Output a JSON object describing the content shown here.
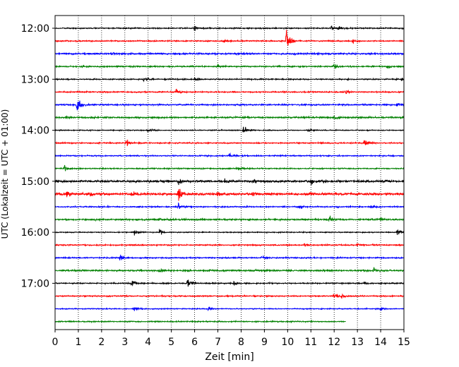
{
  "chart_data": {
    "type": "line",
    "xlabel": "Zeit  [min]",
    "ylabel": "UTC (Lokalzeit = UTC + 01:00)",
    "xlim": [
      0,
      15
    ],
    "x_ticks": [
      0,
      1,
      2,
      3,
      4,
      5,
      6,
      7,
      8,
      9,
      10,
      11,
      12,
      13,
      14,
      15
    ],
    "x_tick_labels": [
      "0",
      "1",
      "2",
      "3",
      "4",
      "5",
      "6",
      "7",
      "8",
      "9",
      "10",
      "11",
      "12",
      "13",
      "14",
      "15"
    ],
    "y_tick_labels": [
      "12:00",
      "13:00",
      "14:00",
      "15:00",
      "16:00",
      "17:00"
    ],
    "grid": "vertical dotted",
    "colors": [
      "#000000",
      "#ff0000",
      "#0000ff",
      "#008000"
    ],
    "start_time": "12:00",
    "trace_interval_min": 15,
    "traces": [
      {
        "start": "12:00",
        "color_index": 0,
        "x_end": 15,
        "noise": 0.5,
        "events": [
          {
            "x": 6.0,
            "amp": 2.2
          },
          {
            "x": 11.9,
            "amp": 2.0
          },
          {
            "x": 12.2,
            "amp": 1.6
          }
        ]
      },
      {
        "start": "12:15",
        "color_index": 1,
        "x_end": 15,
        "noise": 0.5,
        "events": [
          {
            "x": 7.2,
            "amp": 2.0
          },
          {
            "x": 9.95,
            "amp": 12.0
          },
          {
            "x": 12.8,
            "amp": 1.5
          }
        ]
      },
      {
        "start": "12:30",
        "color_index": 2,
        "x_end": 15,
        "noise": 0.7,
        "events": [
          {
            "x": 2.5,
            "amp": 1.4
          }
        ]
      },
      {
        "start": "12:45",
        "color_index": 3,
        "x_end": 15,
        "noise": 0.6,
        "events": [
          {
            "x": 7.0,
            "amp": 1.8
          },
          {
            "x": 12.0,
            "amp": 2.4
          },
          {
            "x": 14.3,
            "amp": 2.0
          }
        ]
      },
      {
        "start": "13:00",
        "color_index": 0,
        "x_end": 15,
        "noise": 0.5,
        "events": [
          {
            "x": 3.8,
            "amp": 2.0
          },
          {
            "x": 6.0,
            "amp": 2.2
          },
          {
            "x": 14.9,
            "amp": 1.8
          }
        ]
      },
      {
        "start": "13:15",
        "color_index": 1,
        "x_end": 15,
        "noise": 0.5,
        "events": [
          {
            "x": 5.2,
            "amp": 2.6
          },
          {
            "x": 12.5,
            "amp": 1.8
          }
        ]
      },
      {
        "start": "13:30",
        "color_index": 2,
        "x_end": 15,
        "noise": 0.6,
        "events": [
          {
            "x": 0.95,
            "amp": 9.0
          },
          {
            "x": 14.7,
            "amp": 2.4
          }
        ]
      },
      {
        "start": "13:45",
        "color_index": 3,
        "x_end": 15,
        "noise": 0.7,
        "events": [
          {
            "x": 0.5,
            "amp": 1.6
          },
          {
            "x": 12.0,
            "amp": 2.0
          }
        ]
      },
      {
        "start": "14:00",
        "color_index": 0,
        "x_end": 15,
        "noise": 0.4,
        "events": [
          {
            "x": 4.0,
            "amp": 1.6
          },
          {
            "x": 8.1,
            "amp": 4.5
          },
          {
            "x": 10.9,
            "amp": 1.6
          }
        ]
      },
      {
        "start": "14:15",
        "color_index": 1,
        "x_end": 15,
        "noise": 0.5,
        "events": [
          {
            "x": 3.05,
            "amp": 3.0
          },
          {
            "x": 13.3,
            "amp": 3.0
          }
        ]
      },
      {
        "start": "14:30",
        "color_index": 2,
        "x_end": 15,
        "noise": 0.5,
        "events": [
          {
            "x": 7.5,
            "amp": 2.5
          }
        ]
      },
      {
        "start": "14:45",
        "color_index": 3,
        "x_end": 15,
        "noise": 0.5,
        "events": [
          {
            "x": 0.4,
            "amp": 3.0
          },
          {
            "x": 7.9,
            "amp": 1.8
          }
        ]
      },
      {
        "start": "15:00",
        "color_index": 0,
        "x_end": 15,
        "noise": 0.9,
        "events": [
          {
            "x": 5.3,
            "amp": 3.2
          },
          {
            "x": 7.3,
            "amp": 2.6
          },
          {
            "x": 8.5,
            "amp": 2.8
          },
          {
            "x": 11.0,
            "amp": 4.2
          },
          {
            "x": 11.5,
            "amp": 2.6
          }
        ]
      },
      {
        "start": "15:15",
        "color_index": 1,
        "x_end": 15,
        "noise": 1.0,
        "events": [
          {
            "x": 0.5,
            "amp": 2.6
          },
          {
            "x": 1.5,
            "amp": 2.4
          },
          {
            "x": 3.3,
            "amp": 3.0
          },
          {
            "x": 5.3,
            "amp": 8.0
          },
          {
            "x": 7.0,
            "amp": 2.8
          },
          {
            "x": 8.5,
            "amp": 2.4
          }
        ]
      },
      {
        "start": "15:30",
        "color_index": 2,
        "x_end": 15,
        "noise": 0.5,
        "events": [
          {
            "x": 5.3,
            "amp": 3.0
          },
          {
            "x": 10.5,
            "amp": 2.0
          },
          {
            "x": 13.6,
            "amp": 2.0
          }
        ]
      },
      {
        "start": "15:45",
        "color_index": 3,
        "x_end": 15,
        "noise": 0.7,
        "events": [
          {
            "x": 11.8,
            "amp": 3.5
          },
          {
            "x": 14.0,
            "amp": 2.4
          }
        ]
      },
      {
        "start": "16:00",
        "color_index": 0,
        "x_end": 15,
        "noise": 0.4,
        "events": [
          {
            "x": 3.4,
            "amp": 3.2
          },
          {
            "x": 4.5,
            "amp": 3.0
          },
          {
            "x": 14.7,
            "amp": 3.6
          }
        ]
      },
      {
        "start": "16:15",
        "color_index": 1,
        "x_end": 15,
        "noise": 0.5,
        "events": [
          {
            "x": 10.7,
            "amp": 1.6
          },
          {
            "x": 13.0,
            "amp": 1.6
          }
        ]
      },
      {
        "start": "16:30",
        "color_index": 2,
        "x_end": 15,
        "noise": 0.5,
        "events": [
          {
            "x": 2.8,
            "amp": 3.2
          },
          {
            "x": 8.9,
            "amp": 2.0
          }
        ]
      },
      {
        "start": "16:45",
        "color_index": 3,
        "x_end": 15,
        "noise": 0.7,
        "events": [
          {
            "x": 4.5,
            "amp": 1.8
          },
          {
            "x": 13.7,
            "amp": 2.4
          }
        ]
      },
      {
        "start": "17:00",
        "color_index": 0,
        "x_end": 15,
        "noise": 0.5,
        "events": [
          {
            "x": 3.3,
            "amp": 3.2
          },
          {
            "x": 5.7,
            "amp": 4.5
          },
          {
            "x": 7.7,
            "amp": 2.0
          },
          {
            "x": 13.3,
            "amp": 2.0
          }
        ]
      },
      {
        "start": "17:15",
        "color_index": 1,
        "x_end": 15,
        "noise": 0.5,
        "events": [
          {
            "x": 12.0,
            "amp": 3.0
          },
          {
            "x": 12.3,
            "amp": 2.6
          }
        ]
      },
      {
        "start": "17:30",
        "color_index": 2,
        "x_end": 15,
        "noise": 0.4,
        "events": [
          {
            "x": 3.4,
            "amp": 3.0
          },
          {
            "x": 6.6,
            "amp": 2.4
          },
          {
            "x": 14.0,
            "amp": 2.2
          }
        ]
      },
      {
        "start": "17:45",
        "color_index": 3,
        "x_end": 12.5,
        "noise": 0.5,
        "events": []
      }
    ]
  }
}
